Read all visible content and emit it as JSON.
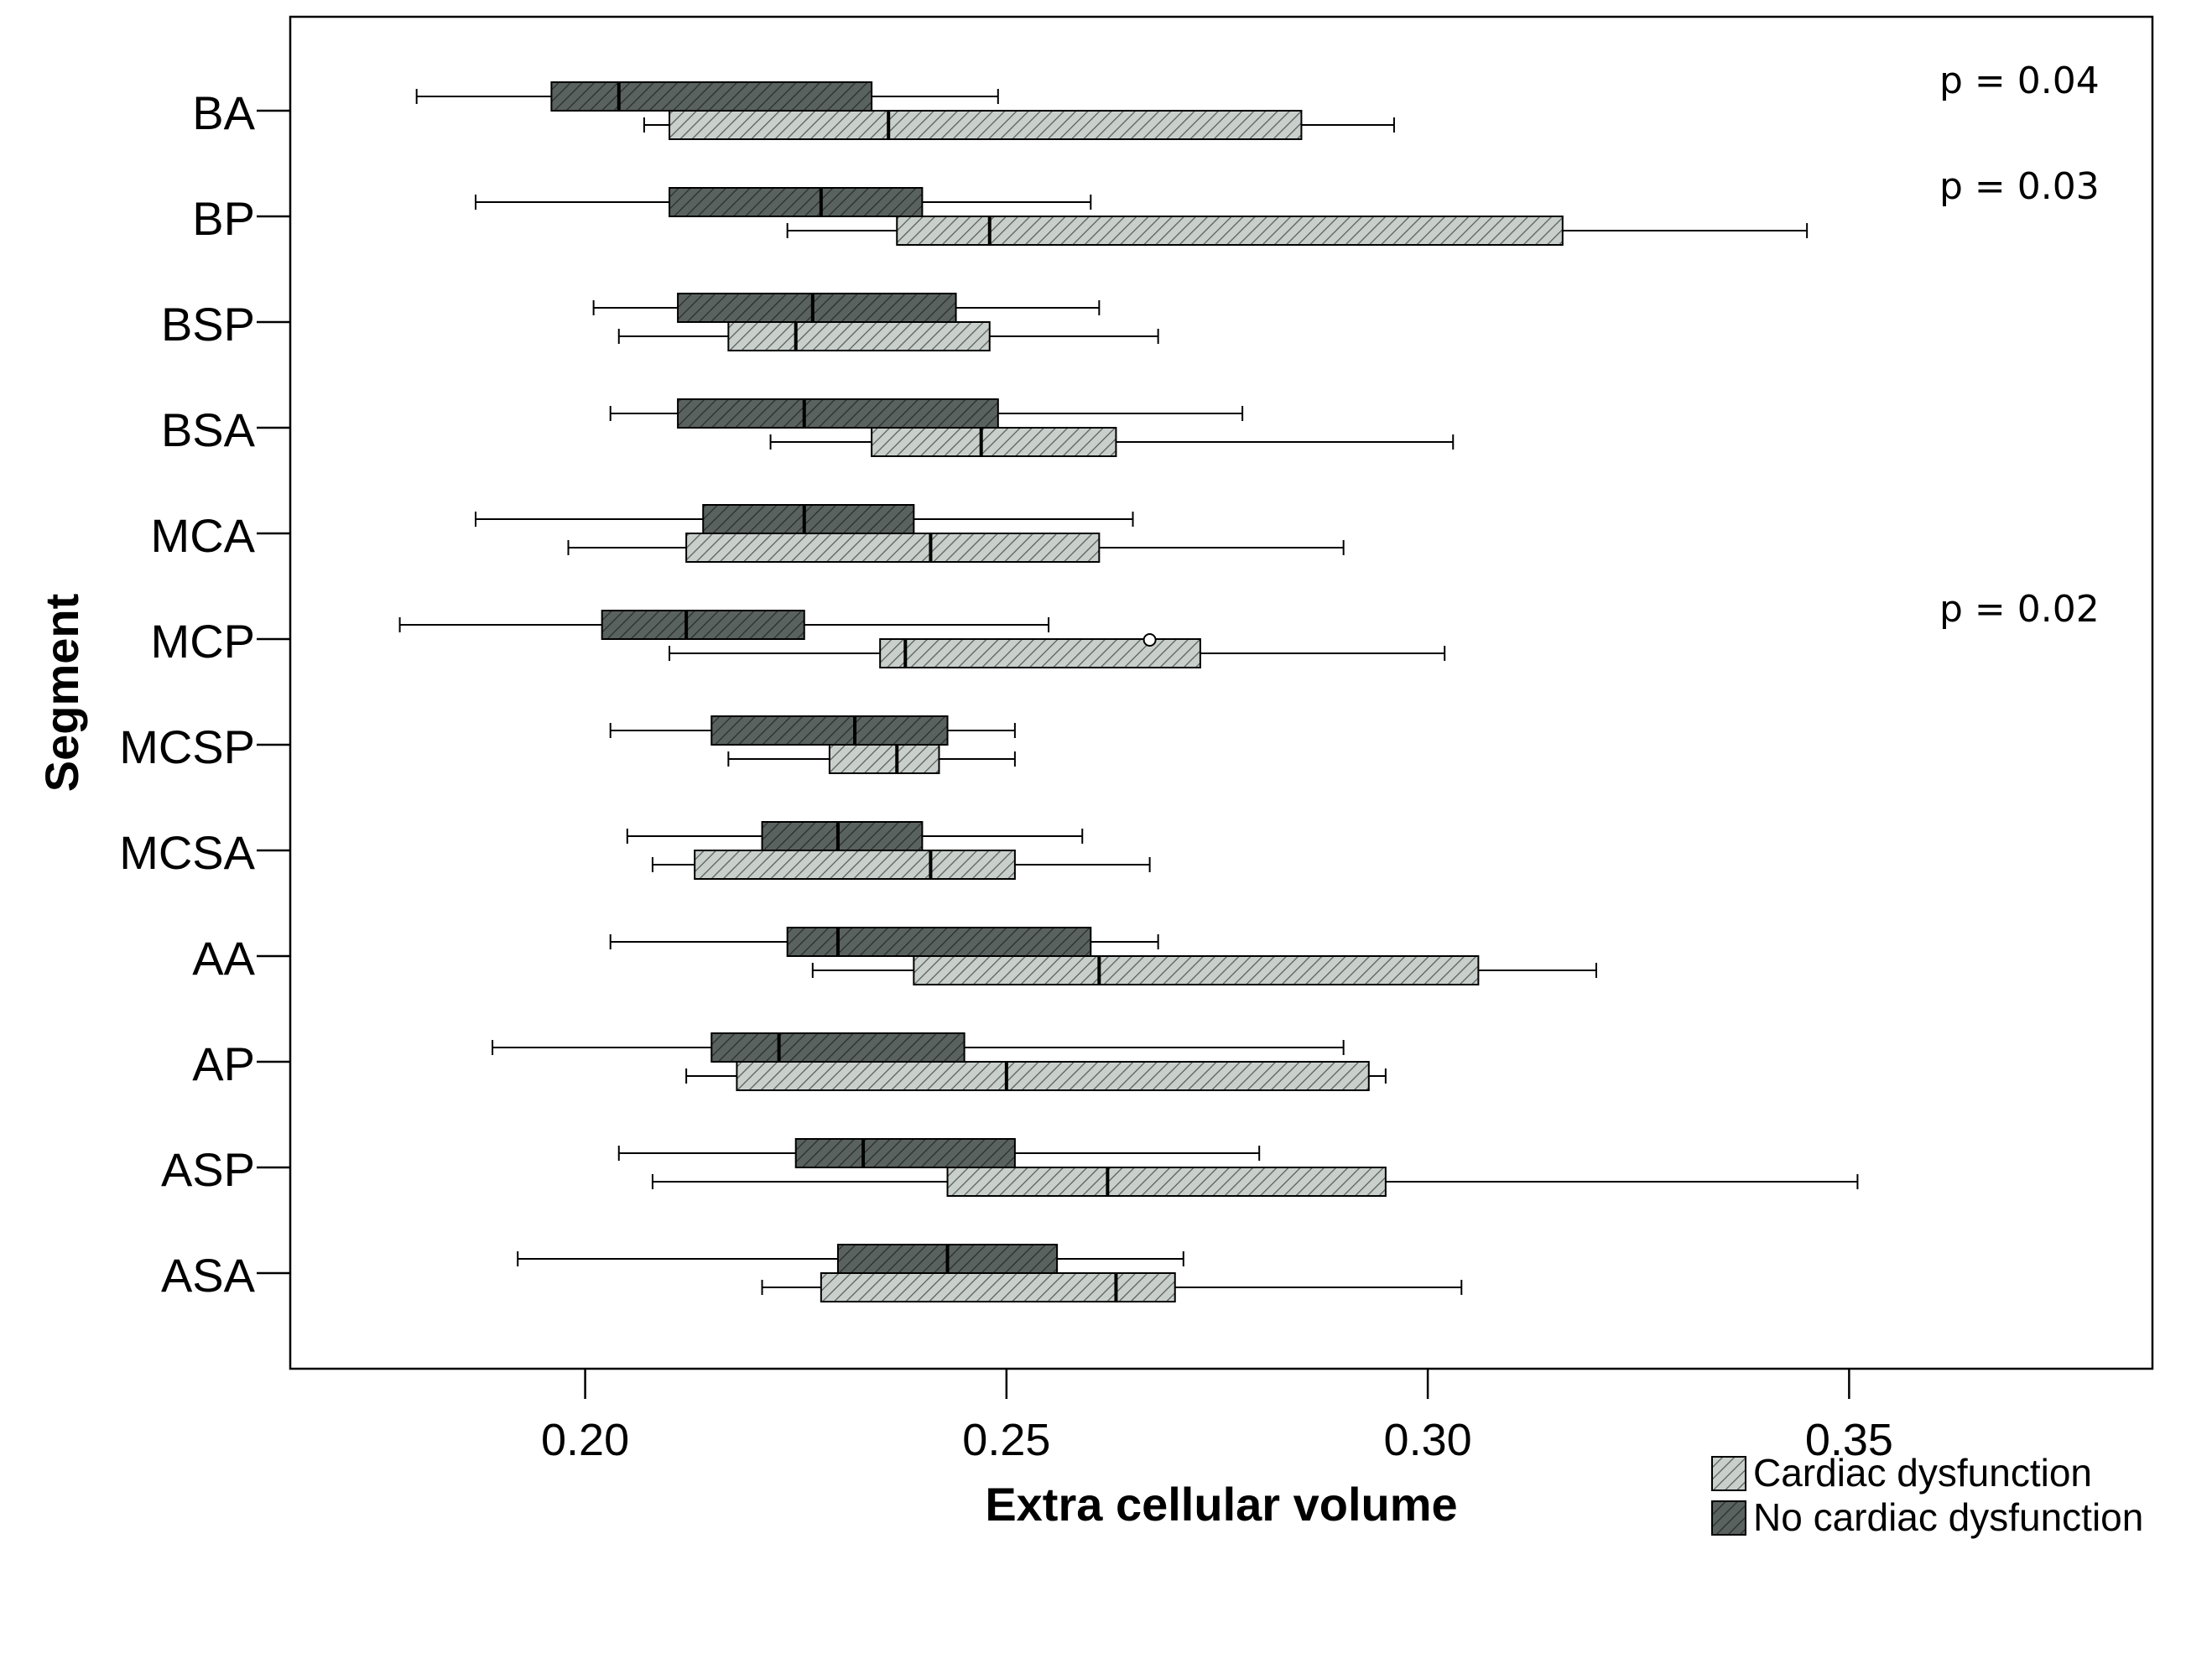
{
  "chart_data": {
    "type": "boxplot",
    "orientation": "horizontal",
    "xlabel": "Extra cellular volume",
    "ylabel": "Segment",
    "xlim": [
      0.165,
      0.386
    ],
    "xticks": [
      0.2,
      0.25,
      0.3,
      0.35
    ],
    "xtick_labels": [
      "0.20",
      "0.25",
      "0.30",
      "0.35"
    ],
    "legend_position": "bottom-right",
    "series": [
      {
        "key": "cd",
        "name": "Cardiac dysfunction",
        "color": "#c9d0cc",
        "hatch": "#5a605d"
      },
      {
        "key": "ncd",
        "name": "No cardiac dysfunction",
        "color": "#5a625f",
        "hatch": "#2c312f"
      }
    ],
    "segments": [
      {
        "label": "BA",
        "p": "p = 0.04",
        "ncd": {
          "whisker_low": 0.18,
          "q1": 0.196,
          "median": 0.204,
          "q3": 0.234,
          "whisker_high": 0.249
        },
        "cd": {
          "whisker_low": 0.207,
          "q1": 0.21,
          "median": 0.236,
          "q3": 0.285,
          "whisker_high": 0.296
        }
      },
      {
        "label": "BP",
        "p": "p = 0.03",
        "ncd": {
          "whisker_low": 0.187,
          "q1": 0.21,
          "median": 0.228,
          "q3": 0.24,
          "whisker_high": 0.26
        },
        "cd": {
          "whisker_low": 0.224,
          "q1": 0.237,
          "median": 0.248,
          "q3": 0.316,
          "whisker_high": 0.345
        }
      },
      {
        "label": "BSP",
        "p": "",
        "ncd": {
          "whisker_low": 0.201,
          "q1": 0.211,
          "median": 0.227,
          "q3": 0.244,
          "whisker_high": 0.261
        },
        "cd": {
          "whisker_low": 0.204,
          "q1": 0.217,
          "median": 0.225,
          "q3": 0.248,
          "whisker_high": 0.268
        }
      },
      {
        "label": "BSA",
        "p": "",
        "ncd": {
          "whisker_low": 0.203,
          "q1": 0.211,
          "median": 0.226,
          "q3": 0.249,
          "whisker_high": 0.278
        },
        "cd": {
          "whisker_low": 0.222,
          "q1": 0.234,
          "median": 0.247,
          "q3": 0.263,
          "whisker_high": 0.303
        }
      },
      {
        "label": "MCA",
        "p": "",
        "ncd": {
          "whisker_low": 0.187,
          "q1": 0.214,
          "median": 0.226,
          "q3": 0.239,
          "whisker_high": 0.265
        },
        "cd": {
          "whisker_low": 0.198,
          "q1": 0.212,
          "median": 0.241,
          "q3": 0.261,
          "whisker_high": 0.29
        }
      },
      {
        "label": "MCP",
        "p": "p = 0.02",
        "ncd": {
          "whisker_low": 0.178,
          "q1": 0.202,
          "median": 0.212,
          "q3": 0.226,
          "whisker_high": 0.255
        },
        "cd": {
          "whisker_low": 0.21,
          "q1": 0.235,
          "median": 0.238,
          "q3": 0.273,
          "whisker_high": 0.302,
          "outliers": [
            0.267
          ]
        }
      },
      {
        "label": "MCSP",
        "p": "",
        "ncd": {
          "whisker_low": 0.203,
          "q1": 0.215,
          "median": 0.232,
          "q3": 0.243,
          "whisker_high": 0.251
        },
        "cd": {
          "whisker_low": 0.217,
          "q1": 0.229,
          "median": 0.237,
          "q3": 0.242,
          "whisker_high": 0.251
        }
      },
      {
        "label": "MCSA",
        "p": "",
        "ncd": {
          "whisker_low": 0.205,
          "q1": 0.221,
          "median": 0.23,
          "q3": 0.24,
          "whisker_high": 0.259
        },
        "cd": {
          "whisker_low": 0.208,
          "q1": 0.213,
          "median": 0.241,
          "q3": 0.251,
          "whisker_high": 0.267
        }
      },
      {
        "label": "AA",
        "p": "",
        "ncd": {
          "whisker_low": 0.203,
          "q1": 0.224,
          "median": 0.23,
          "q3": 0.26,
          "whisker_high": 0.268
        },
        "cd": {
          "whisker_low": 0.227,
          "q1": 0.239,
          "median": 0.261,
          "q3": 0.306,
          "whisker_high": 0.32
        }
      },
      {
        "label": "AP",
        "p": "",
        "ncd": {
          "whisker_low": 0.189,
          "q1": 0.215,
          "median": 0.223,
          "q3": 0.245,
          "whisker_high": 0.29
        },
        "cd": {
          "whisker_low": 0.212,
          "q1": 0.218,
          "median": 0.25,
          "q3": 0.293,
          "whisker_high": 0.295
        }
      },
      {
        "label": "ASP",
        "p": "",
        "ncd": {
          "whisker_low": 0.204,
          "q1": 0.225,
          "median": 0.233,
          "q3": 0.251,
          "whisker_high": 0.28
        },
        "cd": {
          "whisker_low": 0.208,
          "q1": 0.243,
          "median": 0.262,
          "q3": 0.295,
          "whisker_high": 0.351
        }
      },
      {
        "label": "ASA",
        "p": "",
        "ncd": {
          "whisker_low": 0.192,
          "q1": 0.23,
          "median": 0.243,
          "q3": 0.256,
          "whisker_high": 0.271
        },
        "cd": {
          "whisker_low": 0.221,
          "q1": 0.228,
          "median": 0.263,
          "q3": 0.27,
          "whisker_high": 0.304
        }
      }
    ]
  }
}
